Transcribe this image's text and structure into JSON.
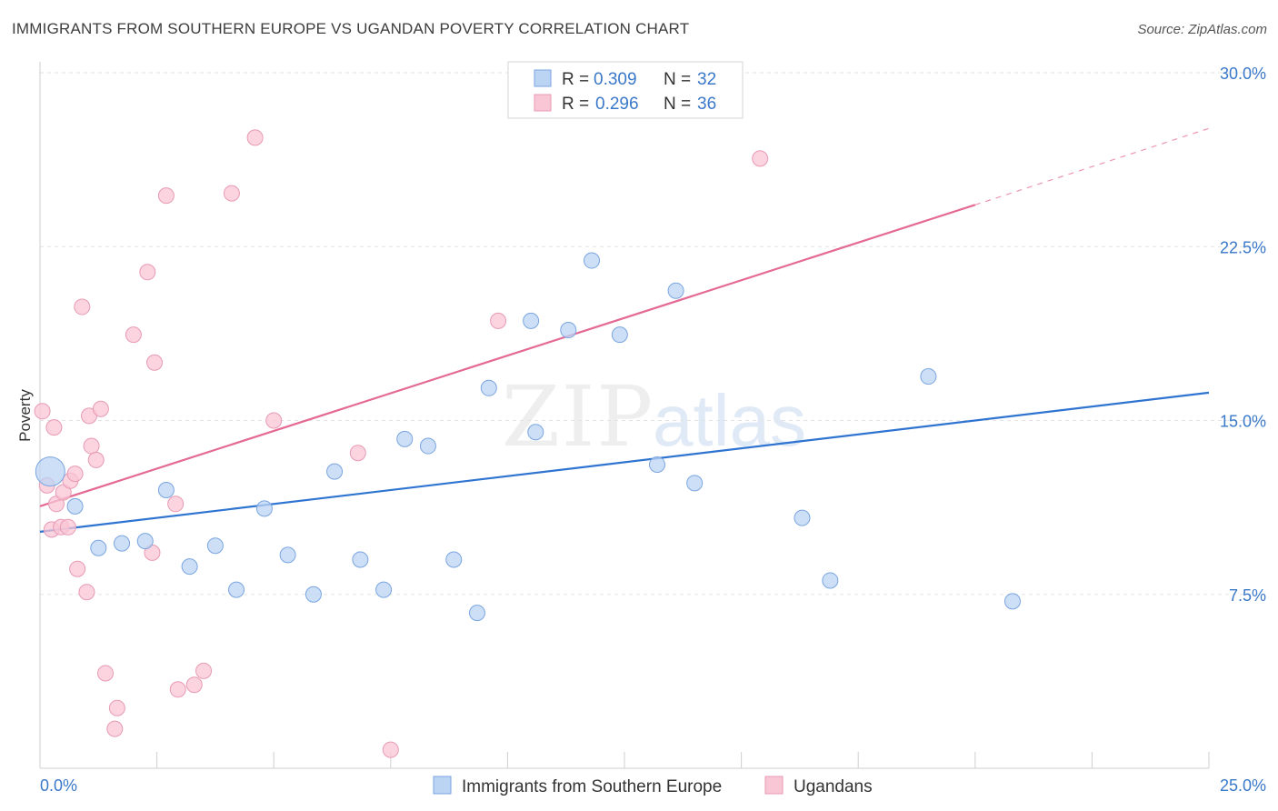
{
  "title": "IMMIGRANTS FROM SOUTHERN EUROPE VS UGANDAN POVERTY CORRELATION CHART",
  "source": "Source: ZipAtlas.com",
  "watermark": {
    "part1": "ZIP",
    "part2": "atlas"
  },
  "legend": [
    {
      "r_label": "R = ",
      "r_value": "0.309",
      "n_label": "N = ",
      "n_value": "32"
    },
    {
      "r_label": "R = ",
      "r_value": "0.296",
      "n_label": "N = ",
      "n_value": "36"
    }
  ],
  "colors": {
    "blue": "#2f74d0",
    "pink": "#e46a94",
    "blue_fill": "#bcd4f4",
    "pink_fill": "#f9c6d6",
    "axis_text": "#3a78c9"
  },
  "chart_data": {
    "type": "scatter",
    "title": "IMMIGRANTS FROM SOUTHERN EUROPE VS UGANDAN POVERTY CORRELATION CHART",
    "xlabel": "",
    "ylabel": "Poverty",
    "xlim": [
      0,
      25
    ],
    "ylim": [
      0,
      30
    ],
    "x_tick_labels": [
      "0.0%",
      "25.0%"
    ],
    "y_ticks": [
      7.5,
      15.0,
      22.5,
      30.0
    ],
    "y_tick_labels": [
      "7.5%",
      "15.0%",
      "22.5%",
      "30.0%"
    ],
    "grid": true,
    "series": [
      {
        "name": "Immigrants from Southern Europe",
        "R": 0.309,
        "N": 32,
        "trend": {
          "x": [
            0,
            25
          ],
          "y": [
            10.2,
            16.2
          ],
          "dashed_extension": false
        },
        "points": [
          {
            "x": 0.22,
            "y": 12.8,
            "big": true
          },
          {
            "x": 0.75,
            "y": 11.3
          },
          {
            "x": 1.25,
            "y": 9.5
          },
          {
            "x": 1.75,
            "y": 9.7
          },
          {
            "x": 2.25,
            "y": 9.8
          },
          {
            "x": 2.7,
            "y": 12.0
          },
          {
            "x": 3.2,
            "y": 8.7
          },
          {
            "x": 3.75,
            "y": 9.6
          },
          {
            "x": 4.2,
            "y": 7.7
          },
          {
            "x": 4.8,
            "y": 11.2
          },
          {
            "x": 5.3,
            "y": 9.2
          },
          {
            "x": 5.85,
            "y": 7.5
          },
          {
            "x": 6.3,
            "y": 12.8
          },
          {
            "x": 6.85,
            "y": 9.0
          },
          {
            "x": 7.35,
            "y": 7.7
          },
          {
            "x": 7.8,
            "y": 14.2
          },
          {
            "x": 8.3,
            "y": 13.9
          },
          {
            "x": 8.85,
            "y": 9.0
          },
          {
            "x": 9.35,
            "y": 6.7
          },
          {
            "x": 9.6,
            "y": 16.4
          },
          {
            "x": 10.5,
            "y": 19.3
          },
          {
            "x": 10.6,
            "y": 14.5
          },
          {
            "x": 11.3,
            "y": 18.9
          },
          {
            "x": 11.8,
            "y": 21.9
          },
          {
            "x": 12.4,
            "y": 18.7
          },
          {
            "x": 13.2,
            "y": 13.1
          },
          {
            "x": 13.6,
            "y": 20.6
          },
          {
            "x": 14.0,
            "y": 12.3
          },
          {
            "x": 16.3,
            "y": 10.8
          },
          {
            "x": 16.9,
            "y": 8.1
          },
          {
            "x": 19.0,
            "y": 16.9
          },
          {
            "x": 20.8,
            "y": 7.2
          }
        ]
      },
      {
        "name": "Ugandans",
        "R": 0.296,
        "N": 36,
        "trend": {
          "x": [
            0,
            20
          ],
          "y": [
            11.3,
            24.3
          ],
          "dash_x": [
            20,
            25
          ],
          "dash_y": [
            24.3,
            27.6
          ]
        },
        "points": [
          {
            "x": 0.05,
            "y": 15.4
          },
          {
            "x": 0.15,
            "y": 12.2
          },
          {
            "x": 0.25,
            "y": 10.3
          },
          {
            "x": 0.3,
            "y": 14.7
          },
          {
            "x": 0.35,
            "y": 11.4
          },
          {
            "x": 0.45,
            "y": 10.4
          },
          {
            "x": 0.5,
            "y": 11.9
          },
          {
            "x": 0.6,
            "y": 10.4
          },
          {
            "x": 0.65,
            "y": 12.4
          },
          {
            "x": 0.75,
            "y": 12.7
          },
          {
            "x": 0.8,
            "y": 8.6
          },
          {
            "x": 0.9,
            "y": 19.9
          },
          {
            "x": 1.0,
            "y": 7.6
          },
          {
            "x": 1.05,
            "y": 15.2
          },
          {
            "x": 1.1,
            "y": 13.9
          },
          {
            "x": 1.2,
            "y": 13.3
          },
          {
            "x": 1.3,
            "y": 15.5
          },
          {
            "x": 1.4,
            "y": 4.1
          },
          {
            "x": 1.65,
            "y": 2.6
          },
          {
            "x": 1.6,
            "y": 1.7
          },
          {
            "x": 2.0,
            "y": 18.7
          },
          {
            "x": 2.3,
            "y": 21.4
          },
          {
            "x": 2.4,
            "y": 9.3
          },
          {
            "x": 2.45,
            "y": 17.5
          },
          {
            "x": 2.7,
            "y": 24.7
          },
          {
            "x": 2.9,
            "y": 11.4
          },
          {
            "x": 2.95,
            "y": 3.4
          },
          {
            "x": 3.3,
            "y": 3.6
          },
          {
            "x": 3.5,
            "y": 4.2
          },
          {
            "x": 4.1,
            "y": 24.8
          },
          {
            "x": 4.6,
            "y": 27.2
          },
          {
            "x": 5.0,
            "y": 15.0
          },
          {
            "x": 6.8,
            "y": 13.6
          },
          {
            "x": 7.5,
            "y": 0.8
          },
          {
            "x": 9.8,
            "y": 19.3
          },
          {
            "x": 15.4,
            "y": 26.3
          }
        ]
      }
    ]
  }
}
